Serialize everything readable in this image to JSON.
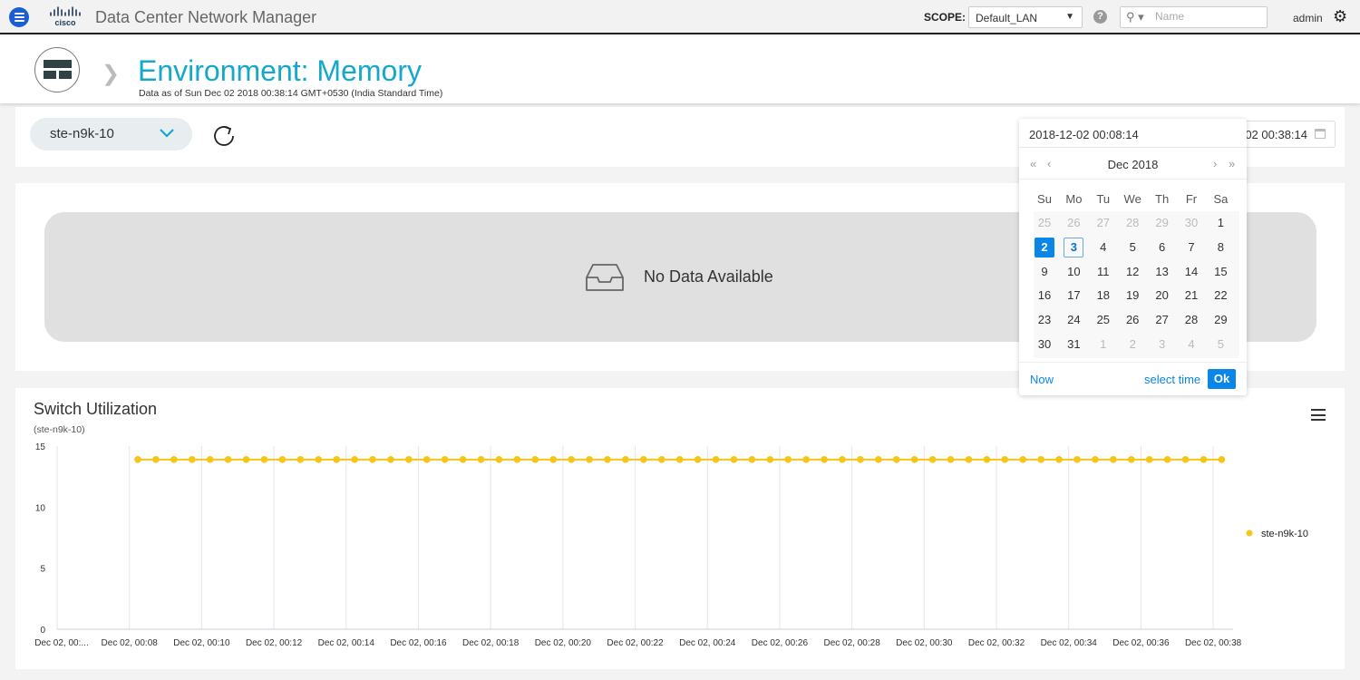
{
  "topbar": {
    "app_title": "Data Center Network Manager",
    "scope_label": "SCOPE:",
    "scope_value": "Default_LAN",
    "help": "?",
    "search_placeholder": "Name",
    "user": "admin"
  },
  "header": {
    "title": "Environment: Memory",
    "subtitle": "Data as of Sun Dec 02 2018 00:38:14 GMT+0530 (India Standard Time)"
  },
  "filters": {
    "switch": "ste-n9k-10",
    "date_range_end": "2018-12-02 00:38:14"
  },
  "datepicker": {
    "value": "2018-12-02 00:08:14",
    "month": "Dec 2018",
    "nav": {
      "prev_year": "«",
      "prev_month": "‹",
      "next_month": "›",
      "next_year": "»"
    },
    "weekdays": [
      "Su",
      "Mo",
      "Tu",
      "We",
      "Th",
      "Fr",
      "Sa"
    ],
    "weeks": [
      [
        "25",
        "26",
        "27",
        "28",
        "29",
        "30",
        "1"
      ],
      [
        "2",
        "3",
        "4",
        "5",
        "6",
        "7",
        "8"
      ],
      [
        "9",
        "10",
        "11",
        "12",
        "13",
        "14",
        "15"
      ],
      [
        "16",
        "17",
        "18",
        "19",
        "20",
        "21",
        "22"
      ],
      [
        "23",
        "24",
        "25",
        "26",
        "27",
        "28",
        "29"
      ],
      [
        "30",
        "31",
        "1",
        "2",
        "3",
        "4",
        "5"
      ]
    ],
    "selected": "2",
    "today": "3",
    "now_label": "Now",
    "select_time_label": "select time",
    "ok_label": "Ok"
  },
  "memory_panel": {
    "empty_text": "No Data Available"
  },
  "chart_panel": {
    "title": "Switch Utilization",
    "subtitle": "(ste-n9k-10)"
  },
  "chart_data": {
    "type": "line",
    "title": "Switch Utilization",
    "subtitle": "(ste-n9k-10)",
    "xlim": [
      "00:06:00",
      "00:38:33"
    ],
    "ylim": [
      0,
      15
    ],
    "yticks": [
      0,
      5,
      10,
      15
    ],
    "xticks": [
      "00:06",
      "00:08",
      "00:10",
      "00:12",
      "00:14",
      "00:16",
      "00:18",
      "00:20",
      "00:22",
      "00:24",
      "00:26",
      "00:28",
      "00:30",
      "00:32",
      "00:34",
      "00:36",
      "00:38"
    ],
    "xtick_labels": [
      "Dec 02, 00:...",
      "Dec 02, 00:08",
      "Dec 02, 00:10",
      "Dec 02, 00:12",
      "Dec 02, 00:14",
      "Dec 02, 00:16",
      "Dec 02, 00:18",
      "Dec 02, 00:20",
      "Dec 02, 00:22",
      "Dec 02, 00:24",
      "Dec 02, 00:26",
      "Dec 02, 00:28",
      "Dec 02, 00:30",
      "Dec 02, 00:32",
      "Dec 02, 00:34",
      "Dec 02, 00:36",
      "Dec 02, 00:38"
    ],
    "grid": "vertical",
    "legend": "right",
    "x": [
      "00:08:14",
      "00:08:44",
      "00:09:14",
      "00:09:44",
      "00:10:14",
      "00:10:44",
      "00:11:14",
      "00:11:44",
      "00:12:14",
      "00:12:44",
      "00:13:14",
      "00:13:44",
      "00:14:14",
      "00:14:44",
      "00:15:14",
      "00:15:44",
      "00:16:14",
      "00:16:44",
      "00:17:14",
      "00:17:44",
      "00:18:14",
      "00:18:44",
      "00:19:14",
      "00:19:44",
      "00:20:14",
      "00:20:44",
      "00:21:14",
      "00:21:44",
      "00:22:14",
      "00:22:44",
      "00:23:14",
      "00:23:44",
      "00:24:14",
      "00:24:44",
      "00:25:14",
      "00:25:44",
      "00:26:14",
      "00:26:44",
      "00:27:14",
      "00:27:44",
      "00:28:14",
      "00:28:44",
      "00:29:14",
      "00:29:44",
      "00:30:14",
      "00:30:44",
      "00:31:14",
      "00:31:44",
      "00:32:14",
      "00:32:44",
      "00:33:14",
      "00:33:44",
      "00:34:14",
      "00:34:44",
      "00:35:14",
      "00:35:44",
      "00:36:14",
      "00:36:44",
      "00:37:14",
      "00:37:44",
      "00:38:14"
    ],
    "series": [
      {
        "name": "ste-n9k-10",
        "color": "#f5c518",
        "values": [
          13.9,
          13.9,
          13.9,
          13.9,
          13.9,
          13.9,
          13.9,
          13.9,
          13.9,
          13.9,
          13.9,
          13.9,
          13.9,
          13.9,
          13.9,
          13.9,
          13.9,
          13.9,
          13.9,
          13.9,
          13.9,
          13.9,
          13.9,
          13.9,
          13.9,
          13.9,
          13.9,
          13.9,
          13.9,
          13.9,
          13.9,
          13.9,
          13.9,
          13.9,
          13.9,
          13.9,
          13.9,
          13.9,
          13.9,
          13.9,
          13.9,
          13.9,
          13.9,
          13.9,
          13.9,
          13.9,
          13.9,
          13.9,
          13.9,
          13.9,
          13.9,
          13.9,
          13.9,
          13.9,
          13.9,
          13.9,
          13.9,
          13.9,
          13.9,
          13.9,
          13.9
        ]
      }
    ]
  }
}
